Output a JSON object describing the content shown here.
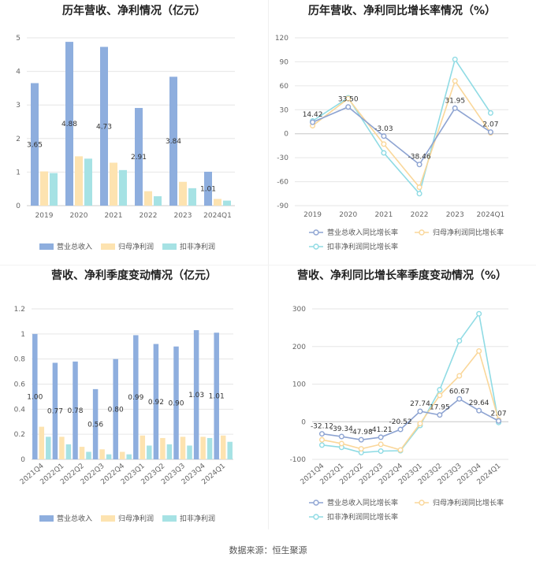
{
  "colors": {
    "revenue": "#8eaede",
    "net_profit": "#fde3b0",
    "deducted": "#a6e2e4",
    "rev_line": "#8ea4d2",
    "np_line": "#fad79a",
    "dd_line": "#8fdbe4"
  },
  "footer": "数据来源：恒生聚源",
  "chart_data": [
    {
      "id": "c1",
      "type": "bar",
      "title": "历年营收、净利情况（亿元）",
      "categories": [
        "2019",
        "2020",
        "2021",
        "2022",
        "2023",
        "2024Q1"
      ],
      "ylim": [
        0,
        5
      ],
      "yticks": [
        0,
        1,
        2,
        3,
        4,
        5
      ],
      "series": [
        {
          "name": "营业总收入",
          "key": "revenue",
          "values": [
            3.65,
            4.88,
            4.73,
            2.91,
            3.84,
            1.01
          ]
        },
        {
          "name": "归母净利润",
          "key": "net_profit",
          "values": [
            1.02,
            1.47,
            1.28,
            0.43,
            0.71,
            0.2
          ]
        },
        {
          "name": "扣非净利润",
          "key": "deducted",
          "values": [
            0.97,
            1.4,
            1.06,
            0.28,
            0.52,
            0.15
          ]
        }
      ],
      "data_labels": [
        "3.65",
        "4.88",
        "4.73",
        "2.91",
        "3.84",
        "1.01"
      ],
      "rotate_x": false
    },
    {
      "id": "c2",
      "type": "line",
      "title": "历年营收、净利同比增长率情况（%）",
      "categories": [
        "2019",
        "2020",
        "2021",
        "2022",
        "2023",
        "2024Q1"
      ],
      "ylim": [
        -90,
        120
      ],
      "yticks": [
        -90,
        -60,
        -30,
        0,
        30,
        60,
        90,
        120
      ],
      "series": [
        {
          "name": "营业总收入同比增长率",
          "key": "rev_line",
          "values": [
            14.42,
            33.5,
            -3.03,
            -38.46,
            31.95,
            2.07
          ]
        },
        {
          "name": "归母净利润同比增长率",
          "key": "np_line",
          "values": [
            10,
            44,
            -13,
            -67,
            66,
            1
          ]
        },
        {
          "name": "扣非净利润同比增长率",
          "key": "dd_line",
          "values": [
            16,
            45,
            -24,
            -75,
            93,
            26
          ]
        }
      ],
      "data_labels": [
        "14.42",
        "33.50",
        "-3.03",
        "-38.46",
        "31.95",
        "2.07"
      ],
      "rotate_x": false
    },
    {
      "id": "c3",
      "type": "bar",
      "title": "营收、净利季度变动情况（亿元）",
      "categories": [
        "2021Q4",
        "2022Q1",
        "2022Q2",
        "2022Q3",
        "2022Q4",
        "2023Q1",
        "2023Q2",
        "2023Q3",
        "2023Q4",
        "2024Q1"
      ],
      "ylim": [
        0,
        1.2
      ],
      "yticks": [
        0,
        0.2,
        0.4,
        0.6,
        0.8,
        1,
        1.2
      ],
      "series": [
        {
          "name": "营业总收入",
          "key": "revenue",
          "values": [
            1.0,
            0.77,
            0.78,
            0.56,
            0.8,
            0.99,
            0.92,
            0.9,
            1.03,
            1.01
          ]
        },
        {
          "name": "归母净利润",
          "key": "net_profit",
          "values": [
            0.26,
            0.18,
            0.1,
            0.08,
            0.06,
            0.19,
            0.17,
            0.18,
            0.18,
            0.19
          ]
        },
        {
          "name": "扣非净利润",
          "key": "deducted",
          "values": [
            0.18,
            0.12,
            0.06,
            0.04,
            0.04,
            0.11,
            0.12,
            0.11,
            0.17,
            0.14
          ]
        }
      ],
      "data_labels": [
        "1.00",
        "0.77",
        "0.78",
        "0.56",
        "0.80",
        "0.99",
        "0.92",
        "0.90",
        "1.03",
        "1.01"
      ],
      "rotate_x": true
    },
    {
      "id": "c4",
      "type": "line",
      "title": "营收、净利同比增长率季度变动情况（%）",
      "categories": [
        "2021Q4",
        "2022Q1",
        "2022Q2",
        "2022Q3",
        "2022Q4",
        "2023Q1",
        "2023Q2",
        "2023Q3",
        "2023Q4",
        "2024Q1"
      ],
      "ylim": [
        -100,
        300
      ],
      "yticks": [
        -100,
        0,
        100,
        200,
        300
      ],
      "series": [
        {
          "name": "营业总收入同比增长率",
          "key": "rev_line",
          "values": [
            -32.12,
            -39.34,
            -47.98,
            -41.21,
            -20.52,
            27.74,
            17.95,
            60.67,
            29.64,
            2.07
          ]
        },
        {
          "name": "归母净利润同比增长率",
          "key": "np_line",
          "values": [
            -48,
            -58,
            -72,
            -60,
            -75,
            -5,
            70,
            122,
            188,
            5
          ]
        },
        {
          "name": "扣非净利润同比增长率",
          "key": "dd_line",
          "values": [
            -62,
            -68,
            -82,
            -78,
            -77,
            -10,
            85,
            215,
            287,
            -2
          ]
        }
      ],
      "data_labels": [
        "-32.12",
        "-39.34",
        "-47.98",
        "-41.21",
        "-20.52",
        "27.74",
        "17.95",
        "60.67",
        "29.64",
        "2.07"
      ],
      "rotate_x": true
    }
  ]
}
